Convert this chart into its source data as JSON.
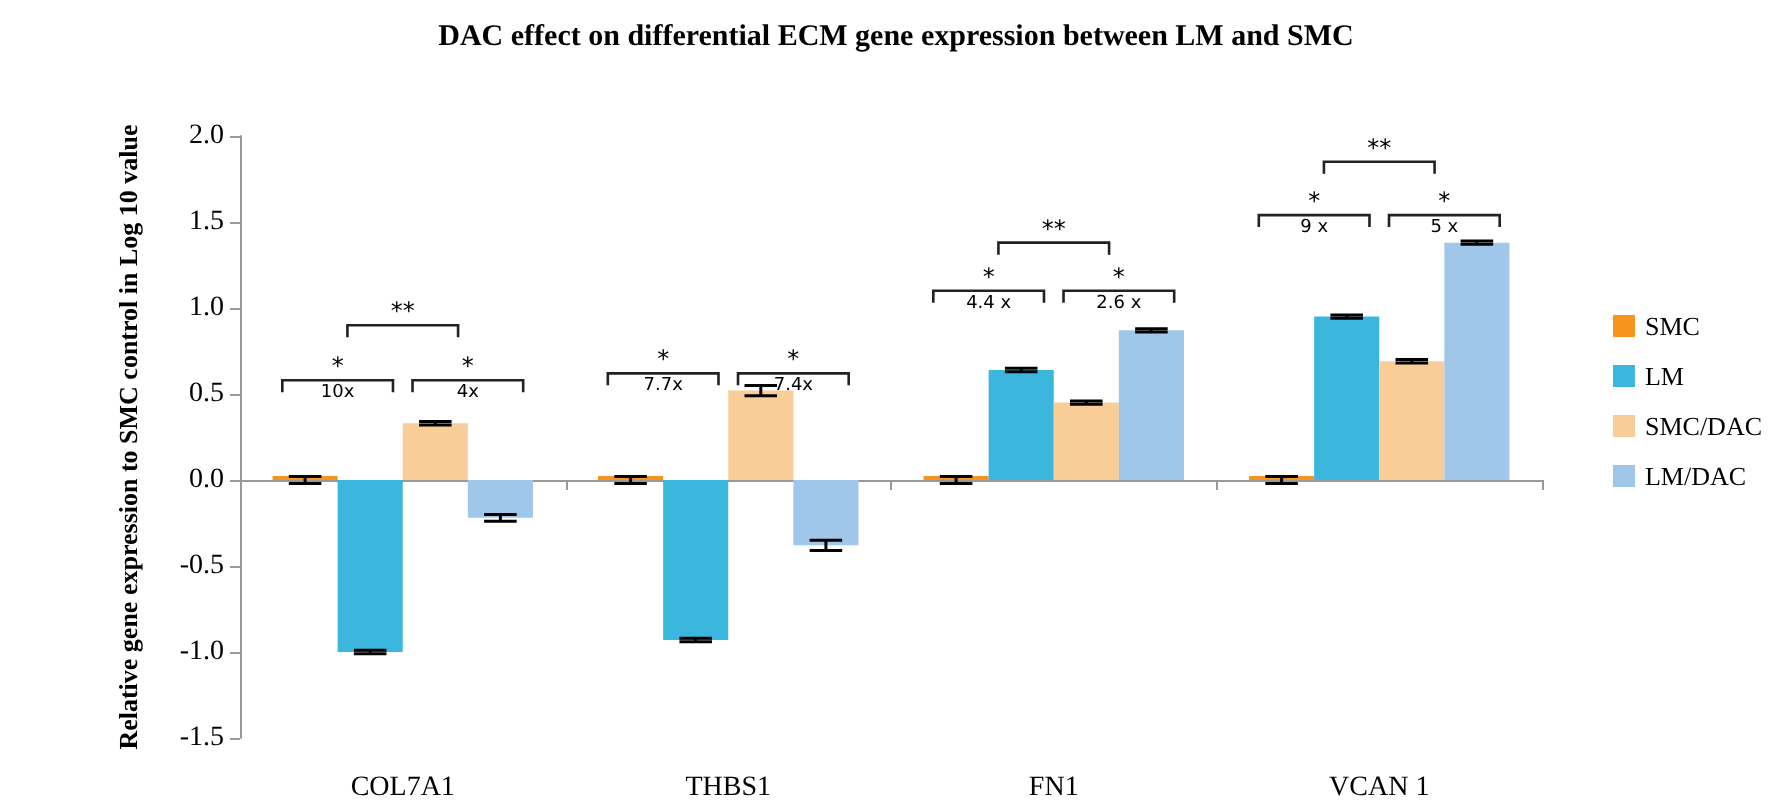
{
  "chart_data": {
    "type": "bar",
    "title": "DAC effect on differential ECM gene expression between LM and SMC",
    "ylabel": "Relative gene expression to SMC control in Log 10 value",
    "categories": [
      "COL7A1",
      "THBS1",
      "FN1",
      "VCAN 1"
    ],
    "series": [
      {
        "name": "SMC",
        "color": "#f7941d",
        "values": [
          0,
          0,
          0,
          0
        ],
        "errors": [
          0.02,
          0.02,
          0.02,
          0.02
        ]
      },
      {
        "name": "LM",
        "color": "#3bb6dd",
        "values": [
          -1.0,
          -0.93,
          0.64,
          0.95
        ],
        "errors": [
          0.01,
          0.01,
          0.01,
          0.01
        ]
      },
      {
        "name": "SMC/DAC",
        "color": "#f9cd98",
        "values": [
          0.33,
          0.52,
          0.45,
          0.69
        ],
        "errors": [
          0.01,
          0.03,
          0.01,
          0.01
        ]
      },
      {
        "name": "LM/DAC",
        "color": "#a0c6e9",
        "values": [
          -0.22,
          -0.38,
          0.87,
          1.38
        ],
        "errors": [
          0.02,
          0.03,
          0.01,
          0.01
        ]
      }
    ],
    "ylim": [
      -1.5,
      2.0
    ],
    "yticks": [
      {
        "value": -1.5,
        "label": "-1.5"
      },
      {
        "value": -1.0,
        "label": "-1.0"
      },
      {
        "value": -0.5,
        "label": "-0.5"
      },
      {
        "value": 0,
        "label": "0.0"
      },
      {
        "value": 0.5,
        "label": "0.5"
      },
      {
        "value": 1.0,
        "label": "1.0"
      },
      {
        "value": 1.5,
        "label": "1.5"
      },
      {
        "value": 2.0,
        "label": "2.0"
      }
    ],
    "annotations": [
      "*",
      "10x",
      "*",
      "4x",
      "**",
      "*",
      "7.7x",
      "*",
      "7.4x",
      "*",
      "4.4 x",
      "*",
      "2.6 x",
      "**",
      "*",
      "9 x",
      "*",
      "5 x",
      "**"
    ],
    "legend": "right"
  }
}
